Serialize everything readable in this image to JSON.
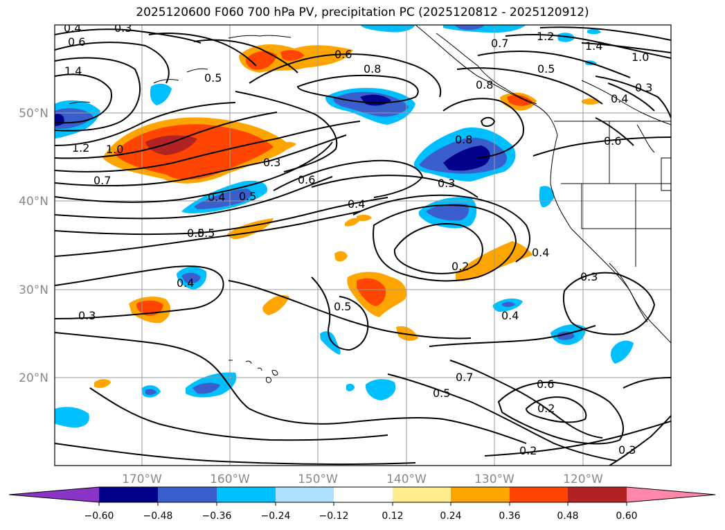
{
  "title": "2025120600 F060 700 hPa PV, precipitation PC (2025120812 - 2025120912)",
  "lat_labels": [
    "50°N",
    "40°N",
    "30°N",
    "20°N"
  ],
  "lon_labels": [
    "170°W",
    "160°W",
    "150°W",
    "140°W",
    "130°W",
    "120°W"
  ],
  "colorbar": {
    "ticks": [
      "−0.60",
      "−0.48",
      "−0.36",
      "−0.24",
      "−0.12",
      "0.12",
      "0.24",
      "0.36",
      "0.48",
      "0.60"
    ],
    "colors": [
      "#8b34c8",
      "#00008b",
      "#3a5fcd",
      "#00bfff",
      "#b0e2ff",
      "#ffffff",
      "#ffec8b",
      "#ffa500",
      "#ff4500",
      "#b22222",
      "#ff88aa"
    ]
  },
  "contour_labels": [
    "0.4",
    "0.3",
    "0.6",
    "1.4",
    "1.2",
    "1.0",
    "0.7",
    "0.5",
    "0.5",
    "0.8",
    "0.6",
    "0.8",
    "0.7",
    "1.2",
    "1.4",
    "1.0",
    "0.5",
    "0.3",
    "0.4",
    "0.6",
    "0.8",
    "0.3",
    "0.6",
    "0.4",
    "0.4",
    "0.5",
    "0.5",
    "0.4",
    "0.2",
    "0.3",
    "0.4",
    "0.5",
    "0.3",
    "0.3",
    "0.4",
    "0.5",
    "0.6",
    "0.2",
    "0.2",
    "0.3",
    "0.7"
  ]
}
